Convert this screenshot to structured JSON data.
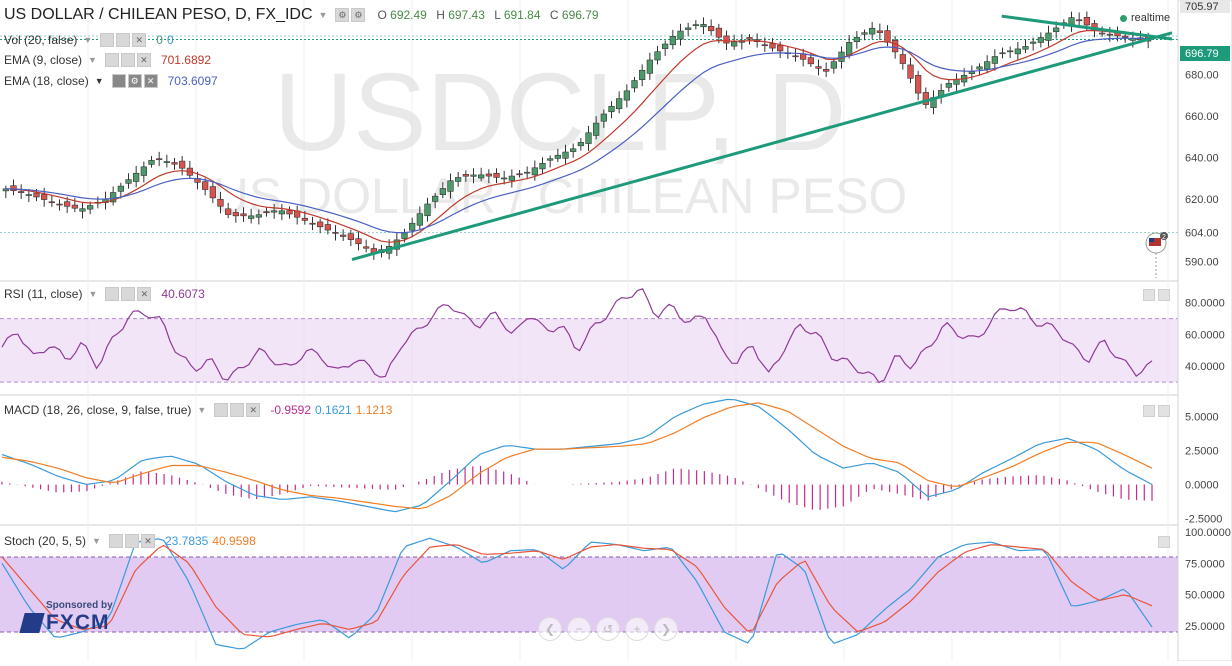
{
  "header": {
    "symbol": "US DOLLAR / CHILEAN PESO, D, FX_IDC",
    "o_label": "O",
    "o_val": "692.49",
    "h_label": "H",
    "h_val": "697.43",
    "l_label": "L",
    "l_val": "691.84",
    "c_label": "C",
    "c_val": "696.79",
    "realtime": "realtime"
  },
  "watermark": {
    "line1": "USDCLP, D",
    "line2": "US DOLLAR / CHILEAN PESO"
  },
  "indicators": {
    "vol": {
      "label": "Vol (20, false)",
      "v1": "0",
      "v2": "0"
    },
    "ema9": {
      "label": "EMA (9, close)",
      "value": "701.6892"
    },
    "ema18": {
      "label": "EMA (18, close)",
      "value": "703.6097"
    },
    "rsi": {
      "label": "RSI (11, close)",
      "value": "40.6073"
    },
    "macd": {
      "label": "MACD (18, 26, close, 9, false, true)",
      "v1": "-0.9592",
      "v2": "0.1621",
      "v3": "1.1213"
    },
    "stoch": {
      "label": "Stoch (20, 5, 5)",
      "v1": "23.7835",
      "v2": "40.9598"
    }
  },
  "price_axis": {
    "ticks": [
      "705.97",
      "696.79",
      "680.00",
      "660.00",
      "640.00",
      "620.00",
      "604.00",
      "590.00"
    ],
    "last": "696.79",
    "top": "705.97"
  },
  "rsi_axis": [
    "80.0000",
    "60.0000",
    "40.0000"
  ],
  "macd_axis": [
    "5.0000",
    "2.5000",
    "0.0000",
    "-2.5000"
  ],
  "stoch_axis": [
    "100.0000",
    "75.0000",
    "50.0000",
    "25.0000"
  ],
  "event_badge": "2",
  "sponsor": {
    "small": "Sponsored by",
    "brand": "FXCM"
  },
  "nav_icons": [
    "back-icon",
    "minus-icon",
    "reset-icon",
    "plus-icon",
    "forward-icon"
  ],
  "colors": {
    "up": "#4c9a6a",
    "down": "#d9534f",
    "ema9": "#c0392b",
    "ema18": "#4a5fc1",
    "trend": "#1d9a7a",
    "rsi": "#8e3a96",
    "macd": "#3a9ad9",
    "signal": "#f07e26",
    "hist": "#c22b8f",
    "band": "#e9d3f3",
    "stochband": "#d8b9ef"
  },
  "chart_data": {
    "type": "candlestick",
    "title": "USDCLP, D",
    "price_range": [
      585,
      710
    ],
    "last_price": 696.79,
    "trendlines": [
      {
        "name": "support",
        "from": [
          0,
          591
        ],
        "to": [
          1,
          700
        ]
      },
      {
        "name": "resistance",
        "from": [
          0.565,
          708
        ],
        "to": [
          1,
          697
        ]
      }
    ],
    "rsi": {
      "range": [
        25,
        88
      ],
      "levels": [
        70,
        30
      ],
      "last": 40.6073,
      "anchors": [
        52,
        62,
        45,
        54,
        44,
        54,
        40,
        58,
        72,
        74,
        68,
        48,
        38,
        44,
        32,
        38,
        50,
        44,
        38,
        50,
        46,
        36,
        44,
        40,
        32,
        54,
        62,
        72,
        80,
        70,
        66,
        74,
        58,
        74,
        62,
        66,
        50,
        64,
        74,
        84,
        88,
        72,
        78,
        66,
        74,
        50,
        42,
        54,
        34,
        52,
        66,
        60,
        46,
        42,
        36,
        30,
        46,
        40,
        52,
        66,
        60,
        56,
        70,
        78,
        74,
        66,
        64,
        52,
        44,
        56,
        44,
        36,
        41
      ]
    },
    "macd": {
      "range": [
        -2.6,
        6.2
      ],
      "macd": [
        2.2,
        1.5,
        0.6,
        0.0,
        0.3,
        1.8,
        2.1,
        1.5,
        0.2,
        -0.8,
        -1.1,
        -0.9,
        -1.2,
        -1.6,
        -2.0,
        -1.5,
        0.3,
        2.2,
        2.9,
        2.6,
        2.6,
        2.8,
        3.0,
        3.5,
        5.0,
        5.9,
        6.3,
        5.7,
        4.1,
        2.2,
        1.2,
        1.6,
        0.9,
        -0.9,
        -0.4,
        0.9,
        1.9,
        3.0,
        3.4,
        2.6,
        1.1,
        0.0
      ],
      "signal": [
        2.0,
        1.7,
        1.2,
        0.5,
        0.1,
        0.8,
        1.4,
        1.4,
        0.9,
        0.3,
        -0.4,
        -0.8,
        -1.0,
        -1.3,
        -1.6,
        -1.8,
        -0.8,
        0.8,
        2.0,
        2.6,
        2.6,
        2.7,
        2.8,
        3.0,
        3.8,
        4.9,
        5.7,
        6.0,
        5.4,
        4.1,
        2.8,
        1.9,
        1.6,
        0.3,
        -0.2,
        0.5,
        1.3,
        2.3,
        3.1,
        3.1,
        2.2,
        1.2
      ]
    },
    "stoch": {
      "range": [
        0,
        100
      ],
      "levels": [
        80,
        20
      ],
      "k": [
        75,
        40,
        15,
        20,
        30,
        92,
        95,
        60,
        10,
        6,
        20,
        26,
        30,
        15,
        35,
        88,
        95,
        88,
        75,
        85,
        86,
        70,
        92,
        90,
        85,
        88,
        60,
        20,
        10,
        85,
        70,
        10,
        18,
        38,
        55,
        80,
        90,
        92,
        85,
        86,
        40,
        45,
        55,
        24
      ],
      "d": [
        80,
        55,
        30,
        22,
        25,
        70,
        90,
        75,
        40,
        18,
        16,
        22,
        27,
        22,
        28,
        65,
        88,
        90,
        82,
        83,
        85,
        78,
        88,
        90,
        87,
        86,
        72,
        40,
        18,
        60,
        78,
        40,
        20,
        28,
        45,
        68,
        84,
        90,
        88,
        86,
        60,
        45,
        50,
        41
      ]
    }
  }
}
